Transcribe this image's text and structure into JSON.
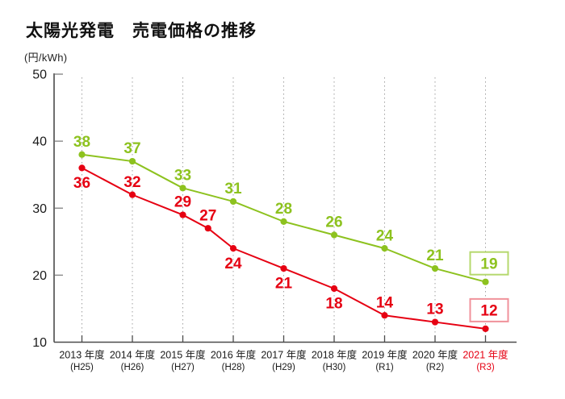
{
  "header": {
    "title": "太陽光発電　売電価格の推移",
    "unit_label": "(円/kWh)"
  },
  "colors": {
    "green": "#8dc21f",
    "green_box_stroke": "#b5d86e",
    "red": "#e60012",
    "red_box_stroke": "#f0929b",
    "axis": "#4b4b4b",
    "tick": "#8a8a8a",
    "grid": "#a0a0a0",
    "text": "#1a1a1a",
    "highlight_year": "#e60012"
  },
  "chart_data": {
    "type": "line",
    "title": "太陽光発電　売電価格の推移",
    "ylabel": "(円/kWh)",
    "xlabel": "",
    "ylim": [
      10,
      50
    ],
    "yticks": [
      10,
      20,
      30,
      40,
      50
    ],
    "grid": "vertical dotted line at each year",
    "legend": "none",
    "categories": [
      {
        "year": "2013 年度",
        "era": "(H25)",
        "highlight": false
      },
      {
        "year": "2014 年度",
        "era": "(H26)",
        "highlight": false
      },
      {
        "year": "2015 年度",
        "era": "(H27)",
        "highlight": false
      },
      {
        "year": "2016 年度",
        "era": "(H28)",
        "highlight": false
      },
      {
        "year": "2017 年度",
        "era": "(H29)",
        "highlight": false
      },
      {
        "year": "2018 年度",
        "era": "(H30)",
        "highlight": false
      },
      {
        "year": "2019 年度",
        "era": "(R1)",
        "highlight": false
      },
      {
        "year": "2020 年度",
        "era": "(R2)",
        "highlight": false
      },
      {
        "year": "2021 年度",
        "era": "(R3)",
        "highlight": true
      }
    ],
    "series": [
      {
        "name": "green-line",
        "color_key": "green",
        "box_stroke_key": "green_box_stroke",
        "points": [
          {
            "x": 0,
            "value": 38,
            "label": "38",
            "label_pos": "above"
          },
          {
            "x": 1,
            "value": 37,
            "label": "37",
            "label_pos": "above"
          },
          {
            "x": 2,
            "value": 33,
            "label": "33",
            "label_pos": "above"
          },
          {
            "x": 3,
            "value": 31,
            "label": "31",
            "label_pos": "above"
          },
          {
            "x": 4,
            "value": 28,
            "label": "28",
            "label_pos": "above"
          },
          {
            "x": 5,
            "value": 26,
            "label": "26",
            "label_pos": "above"
          },
          {
            "x": 6,
            "value": 24,
            "label": "24",
            "label_pos": "above"
          },
          {
            "x": 7,
            "value": 21,
            "label": "21",
            "label_pos": "above"
          },
          {
            "x": 8,
            "value": 19,
            "label": "19",
            "label_pos": "boxed"
          }
        ]
      },
      {
        "name": "red-line",
        "color_key": "red",
        "box_stroke_key": "red_box_stroke",
        "points": [
          {
            "x": 0,
            "value": 36,
            "label": "36",
            "label_pos": "below"
          },
          {
            "x": 1,
            "value": 32,
            "label": "32",
            "label_pos": "above"
          },
          {
            "x": 2,
            "value": 29,
            "label": "29",
            "label_pos": "above"
          },
          {
            "x": 2.5,
            "value": 27,
            "label": "27",
            "label_pos": "above"
          },
          {
            "x": 3,
            "value": 24,
            "label": "24",
            "label_pos": "below"
          },
          {
            "x": 4,
            "value": 21,
            "label": "21",
            "label_pos": "below"
          },
          {
            "x": 5,
            "value": 18,
            "label": "18",
            "label_pos": "below"
          },
          {
            "x": 6,
            "value": 14,
            "label": "14",
            "label_pos": "above"
          },
          {
            "x": 7,
            "value": 13,
            "label": "13",
            "label_pos": "above"
          },
          {
            "x": 8,
            "value": 12,
            "label": "12",
            "label_pos": "boxed"
          }
        ]
      }
    ]
  }
}
